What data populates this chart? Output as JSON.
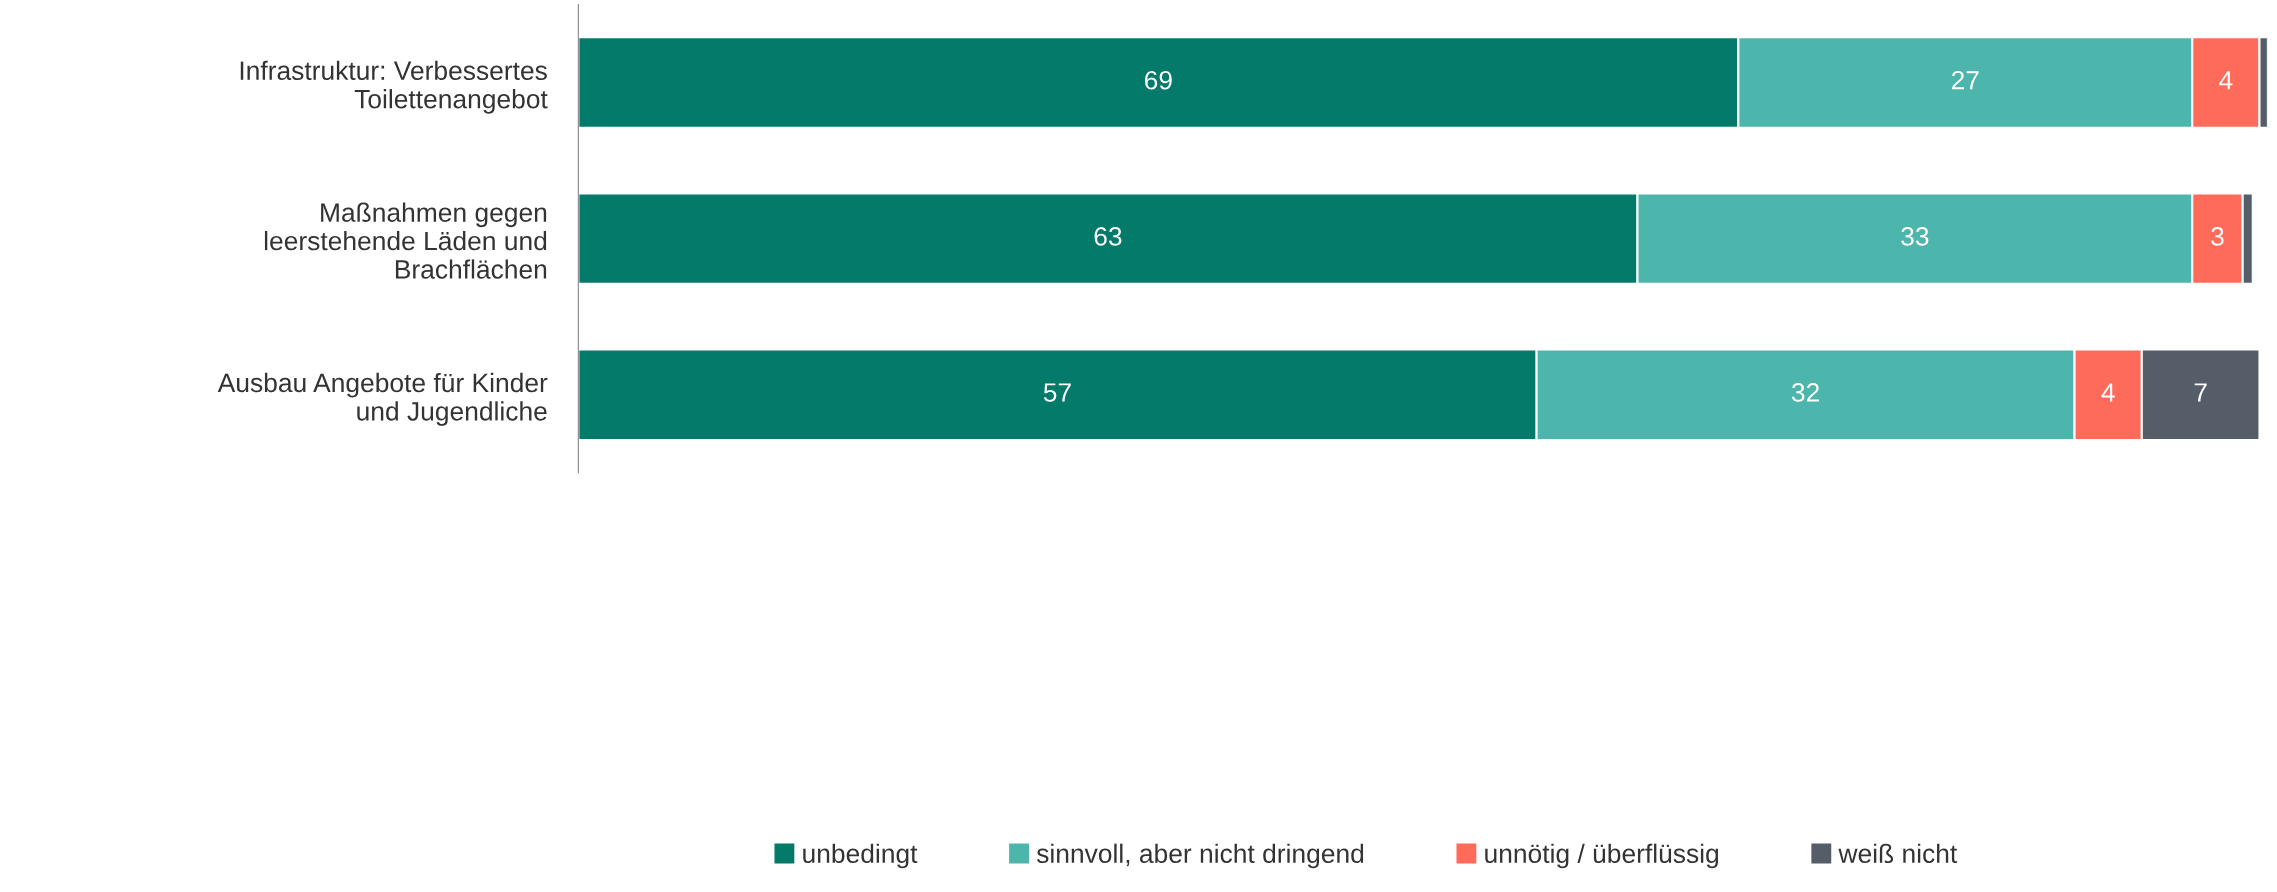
{
  "chart_data": {
    "type": "bar",
    "orientation": "horizontal",
    "stacked": true,
    "categories": [
      "Infrastruktur: Verbessertes\nToilettenangebot",
      "Maßnahmen gegen\nleerstehende Läden und\nBrachflächen",
      "Ausbau Angebote für Kinder\nund Jugendliche"
    ],
    "series": [
      {
        "name": "unbedingt",
        "color": "#037a6a",
        "values": [
          69,
          63,
          57
        ],
        "value_labels": [
          "69",
          "63",
          "57"
        ]
      },
      {
        "name": "sinnvoll, aber nicht dringend",
        "color": "#4db6ac",
        "values": [
          27,
          33,
          32
        ],
        "value_labels": [
          "27",
          "33",
          "32"
        ]
      },
      {
        "name": "unnötig / überflüssig",
        "color": "#ff6b5b",
        "values": [
          4,
          3,
          4
        ],
        "value_labels": [
          "4",
          "3",
          "4"
        ]
      },
      {
        "name": "weiß nicht",
        "color": "#555d69",
        "values": [
          0.5,
          0.6,
          7
        ],
        "value_labels": [
          null,
          null,
          "7"
        ]
      }
    ],
    "tick_labels": "y",
    "grid": false,
    "legend": "bottom"
  }
}
